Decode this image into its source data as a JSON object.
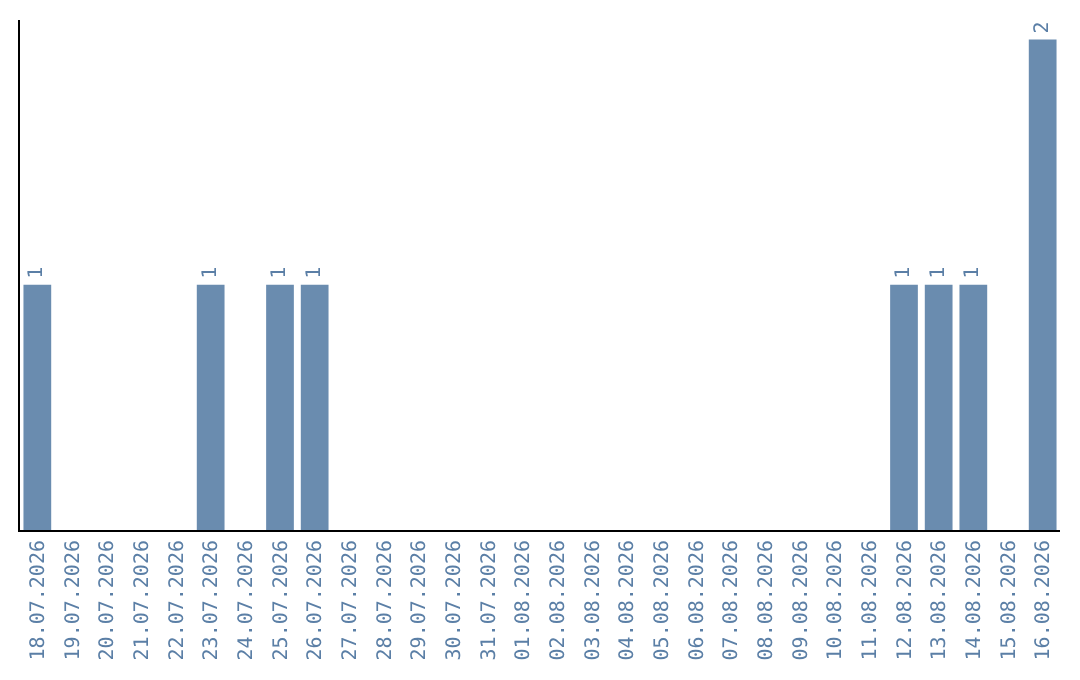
{
  "chart_data": {
    "type": "bar",
    "categories": [
      "18.07.2026",
      "19.07.2026",
      "20.07.2026",
      "21.07.2026",
      "22.07.2026",
      "23.07.2026",
      "24.07.2026",
      "25.07.2026",
      "26.07.2026",
      "27.07.2026",
      "28.07.2026",
      "29.07.2026",
      "30.07.2026",
      "31.07.2026",
      "01.08.2026",
      "02.08.2026",
      "03.08.2026",
      "04.08.2026",
      "05.08.2026",
      "06.08.2026",
      "07.08.2026",
      "08.08.2026",
      "09.08.2026",
      "10.08.2026",
      "11.08.2026",
      "12.08.2026",
      "13.08.2026",
      "14.08.2026",
      "15.08.2026",
      "16.08.2026"
    ],
    "values": [
      1,
      0,
      0,
      0,
      0,
      1,
      0,
      1,
      1,
      0,
      0,
      0,
      0,
      0,
      0,
      0,
      0,
      0,
      0,
      0,
      0,
      0,
      0,
      0,
      0,
      1,
      1,
      1,
      0,
      2
    ],
    "value_labels": [
      "1",
      null,
      null,
      null,
      null,
      "1",
      null,
      "1",
      "1",
      null,
      null,
      null,
      null,
      null,
      null,
      null,
      null,
      null,
      null,
      null,
      null,
      null,
      null,
      null,
      null,
      "1",
      "1",
      "1",
      null,
      "2"
    ],
    "color": "#6a8caf",
    "ylim": [
      0,
      2.08
    ],
    "tick_labels": "x",
    "legend": false
  }
}
